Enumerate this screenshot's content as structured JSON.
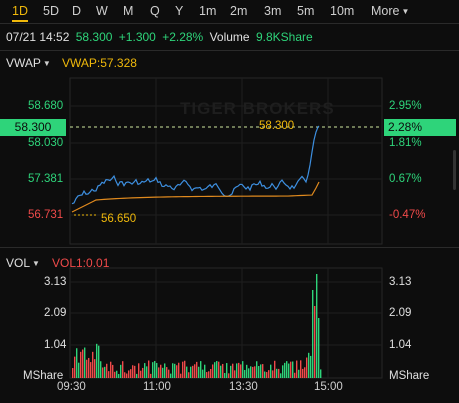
{
  "tabs": [
    "1D",
    "5D",
    "D",
    "W",
    "M",
    "Q",
    "Y",
    "1m",
    "2m",
    "3m",
    "5m",
    "10m"
  ],
  "active_tab": "1D",
  "more_label": "More",
  "quote": {
    "time": "07/21 14:52",
    "price": "58.300",
    "change": "+1.300",
    "change_pct": "+2.28%",
    "volume_label": "Volume",
    "volume_value": "9.8KShare"
  },
  "price_panel": {
    "indicator_label": "VWAP",
    "vwap_label": "VWAP:57.328",
    "price_levels": [
      "58.680",
      "58.030",
      "57.381",
      "56.731"
    ],
    "pct_levels": [
      "2.95%",
      "1.81%",
      "0.67%",
      "-0.47%"
    ],
    "current_price": "58.300",
    "current_pct": "2.28%",
    "low_marker": "56.650",
    "current_tag": "58.300",
    "watermark": "TIGER BROKERS"
  },
  "volume_panel": {
    "indicator_label": "VOL",
    "vol_label": "VOL1:0.01",
    "levels": [
      "3.13",
      "2.09",
      "1.04"
    ],
    "unit": "MShare"
  },
  "time_axis": [
    "09:30",
    "11:00",
    "13:30",
    "15:00"
  ],
  "colors": {
    "up": "#2ed47a",
    "down": "#f04a4a",
    "accent": "#f0b90b",
    "price_line": "#3d8fe0",
    "vwap_line": "#e08a1e"
  },
  "icons": {
    "more_caret": "chevron-down-icon",
    "indicator_caret": "chevron-down-icon"
  }
}
